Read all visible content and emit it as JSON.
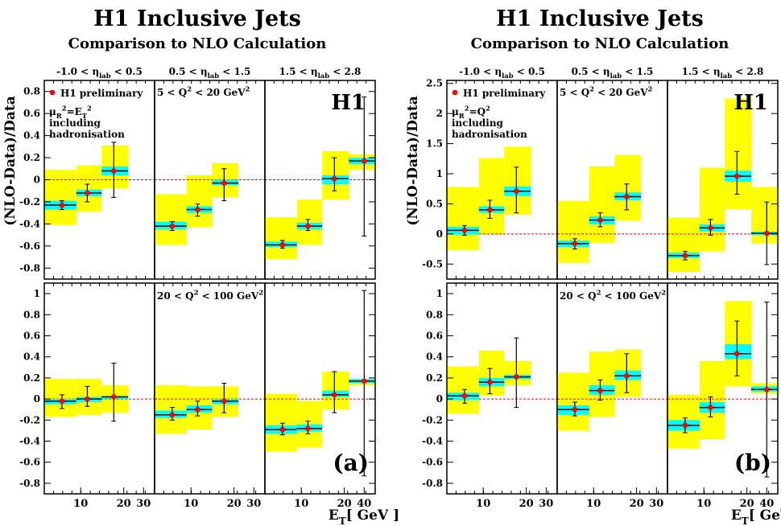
{
  "figure": {
    "title": "H1 Inclusive Jets",
    "subtitle": "Comparison to NLO Calculation",
    "ylabel": "(NLO-Data)/Data",
    "xlabel": "E",
    "xlabel_sub": "T",
    "xlabel_unit": "[ GeV ]",
    "eta_bins": [
      {
        "pre": "-1.0 < η",
        "sub": "lab",
        "post": " < 0.5"
      },
      {
        "pre": "0.5 < η",
        "sub": "lab",
        "post": " < 1.5"
      },
      {
        "pre": "1.5 < η",
        "sub": "lab",
        "post": " < 2.8"
      }
    ],
    "q2_bins": [
      {
        "pre": "5 < Q",
        "sup": "2",
        "post": " < 20 GeV",
        "sup2": "2"
      },
      {
        "pre": "20 < Q",
        "sup": "2",
        "post": " < 100 GeV",
        "sup2": "2"
      }
    ],
    "legend_marker_label": "H1 preliminary",
    "legend_line2": "including",
    "legend_line3": "hadronisation",
    "h1_logo": "H1",
    "colors": {
      "uncertainty": "#ffff00",
      "band": "#00ffff",
      "marker": "#ff0000",
      "zero_line": "#ff0000"
    }
  },
  "chart_data": [
    {
      "type": "scatter",
      "panel_label": "(a)",
      "scale_label": {
        "mu": "μ",
        "mu_sub": "R",
        "mu_sup": "2",
        "eq": "=E",
        "rhs_sub": "T",
        "rhs_sup": "2"
      },
      "ylim_top": [
        -0.9,
        0.9
      ],
      "ylim_bottom": [
        -0.9,
        1.1
      ],
      "yticks_top": [
        "-0.8",
        "-0.6",
        "-0.4",
        "-0.2",
        "0",
        "0.2",
        "0.4",
        "0.6",
        "0.8"
      ],
      "yticks_bottom": [
        "-0.8",
        "-0.6",
        "-0.4",
        "-0.2",
        "0",
        "0.2",
        "0.4",
        "0.6",
        "0.8",
        "1"
      ],
      "xtick_labels": [
        [
          "10",
          "20",
          "30"
        ],
        [
          "10",
          "20",
          "30"
        ],
        [
          "10",
          "20",
          "40"
        ]
      ],
      "rows": [
        [
          {
            "points": [
              {
                "x": 0.5,
                "y": -0.23,
                "ylo": -0.27,
                "yhi": -0.19,
                "bandlo": -0.27,
                "bandhi": -0.19,
                "unclo": -0.41,
                "unchi": 0.09
              },
              {
                "x": 1.5,
                "y": -0.12,
                "ylo": -0.2,
                "yhi": -0.04,
                "bandlo": -0.15,
                "bandhi": -0.09,
                "unclo": -0.29,
                "unchi": 0.13
              },
              {
                "x": 2.5,
                "y": 0.08,
                "ylo": -0.16,
                "yhi": 0.34,
                "bandlo": 0.04,
                "bandhi": 0.12,
                "unclo": -0.08,
                "unchi": 0.31
              }
            ]
          },
          {
            "points": [
              {
                "x": 0.5,
                "y": -0.42,
                "ylo": -0.46,
                "yhi": -0.38,
                "bandlo": -0.45,
                "bandhi": -0.38,
                "unclo": -0.59,
                "unchi": -0.13
              },
              {
                "x": 1.5,
                "y": -0.27,
                "ylo": -0.33,
                "yhi": -0.22,
                "bandlo": -0.3,
                "bandhi": -0.24,
                "unclo": -0.43,
                "unchi": 0.04
              },
              {
                "x": 2.5,
                "y": -0.03,
                "ylo": -0.19,
                "yhi": 0.1,
                "bandlo": -0.05,
                "bandhi": 0.0,
                "unclo": -0.16,
                "unchi": 0.15
              }
            ]
          },
          {
            "points": [
              {
                "x": 0.5,
                "y": -0.59,
                "ylo": -0.62,
                "yhi": -0.55,
                "bandlo": -0.61,
                "bandhi": -0.56,
                "unclo": -0.72,
                "unchi": -0.34
              },
              {
                "x": 1.5,
                "y": -0.42,
                "ylo": -0.46,
                "yhi": -0.36,
                "bandlo": -0.45,
                "bandhi": -0.39,
                "unclo": -0.59,
                "unchi": -0.18
              },
              {
                "x": 2.5,
                "y": 0.01,
                "ylo": -0.1,
                "yhi": 0.2,
                "bandlo": -0.04,
                "bandhi": 0.04,
                "unclo": -0.18,
                "unchi": 0.26
              },
              {
                "x": 3.5,
                "y": 0.17,
                "ylo": -0.51,
                "yhi": 0.75,
                "bandlo": 0.14,
                "bandhi": 0.2,
                "unclo": 0.09,
                "unchi": 0.23
              }
            ]
          }
        ],
        [
          {
            "points": [
              {
                "x": 0.5,
                "y": -0.02,
                "ylo": -0.09,
                "yhi": 0.04,
                "bandlo": -0.05,
                "bandhi": 0.0,
                "unclo": -0.17,
                "unchi": 0.19
              },
              {
                "x": 1.5,
                "y": 0.0,
                "ylo": -0.07,
                "yhi": 0.12,
                "bandlo": -0.03,
                "bandhi": 0.02,
                "unclo": -0.15,
                "unchi": 0.19
              },
              {
                "x": 2.5,
                "y": 0.02,
                "ylo": -0.21,
                "yhi": 0.34,
                "bandlo": 0.0,
                "bandhi": 0.03,
                "unclo": -0.13,
                "unchi": 0.13
              }
            ]
          },
          {
            "points": [
              {
                "x": 0.5,
                "y": -0.15,
                "ylo": -0.2,
                "yhi": -0.08,
                "bandlo": -0.18,
                "bandhi": -0.11,
                "unclo": -0.33,
                "unchi": 0.13
              },
              {
                "x": 1.5,
                "y": -0.1,
                "ylo": -0.16,
                "yhi": -0.02,
                "bandlo": -0.13,
                "bandhi": -0.06,
                "unclo": -0.29,
                "unchi": 0.12
              },
              {
                "x": 2.5,
                "y": -0.02,
                "ylo": -0.13,
                "yhi": 0.15,
                "bandlo": -0.05,
                "bandhi": 0.0,
                "unclo": -0.17,
                "unchi": 0.12
              }
            ]
          },
          {
            "points": [
              {
                "x": 0.5,
                "y": -0.29,
                "ylo": -0.34,
                "yhi": -0.23,
                "bandlo": -0.33,
                "bandhi": -0.25,
                "unclo": -0.5,
                "unchi": 0.05
              },
              {
                "x": 1.5,
                "y": -0.28,
                "ylo": -0.33,
                "yhi": -0.21,
                "bandlo": -0.31,
                "bandhi": -0.24,
                "unclo": -0.46,
                "unchi": -0.02
              },
              {
                "x": 2.5,
                "y": 0.04,
                "ylo": -0.13,
                "yhi": 0.26,
                "bandlo": 0.02,
                "bandhi": 0.08,
                "unclo": -0.1,
                "unchi": 0.26
              },
              {
                "x": 3.5,
                "y": 0.17,
                "ylo": -0.73,
                "yhi": 1.03,
                "bandlo": 0.15,
                "bandhi": 0.19,
                "unclo": 0.13,
                "unchi": 0.19
              }
            ]
          }
        ]
      ]
    },
    {
      "type": "scatter",
      "panel_label": "(b)",
      "scale_label": {
        "mu": "μ",
        "mu_sub": "R",
        "mu_sup": "2",
        "eq": "=Q",
        "rhs_sub": "",
        "rhs_sup": "2"
      },
      "ylim_top": [
        -0.75,
        2.55
      ],
      "ylim_bottom": [
        -0.9,
        1.1
      ],
      "yticks_top": [
        "-0.5",
        "0",
        "0.5",
        "1",
        "1.5",
        "2",
        "2.5"
      ],
      "yticks_bottom": [
        "-0.8",
        "-0.6",
        "-0.4",
        "-0.2",
        "0",
        "0.2",
        "0.4",
        "0.6",
        "0.8",
        "1"
      ],
      "xtick_labels": [
        [
          "10",
          "20",
          "30"
        ],
        [
          "10",
          "20",
          "30"
        ],
        [
          "10",
          "20",
          "40"
        ]
      ],
      "rows": [
        [
          {
            "points": [
              {
                "x": 0.5,
                "y": 0.06,
                "ylo": -0.02,
                "yhi": 0.14,
                "bandlo": -0.01,
                "bandhi": 0.12,
                "unclo": -0.27,
                "unchi": 0.78
              },
              {
                "x": 1.5,
                "y": 0.4,
                "ylo": 0.26,
                "yhi": 0.56,
                "bandlo": 0.35,
                "bandhi": 0.46,
                "unclo": -0.01,
                "unchi": 1.26
              },
              {
                "x": 2.5,
                "y": 0.71,
                "ylo": 0.35,
                "yhi": 1.11,
                "bandlo": 0.63,
                "bandhi": 0.79,
                "unclo": 0.32,
                "unchi": 1.45
              }
            ]
          },
          {
            "points": [
              {
                "x": 0.5,
                "y": -0.16,
                "ylo": -0.25,
                "yhi": -0.08,
                "bandlo": -0.22,
                "bandhi": -0.11,
                "unclo": -0.48,
                "unchi": 0.55
              },
              {
                "x": 1.5,
                "y": 0.23,
                "ylo": 0.12,
                "yhi": 0.35,
                "bandlo": 0.16,
                "bandhi": 0.29,
                "unclo": -0.15,
                "unchi": 1.12
              },
              {
                "x": 2.5,
                "y": 0.62,
                "ylo": 0.4,
                "yhi": 0.83,
                "bandlo": 0.56,
                "bandhi": 0.69,
                "unclo": 0.22,
                "unchi": 1.31
              }
            ]
          },
          {
            "points": [
              {
                "x": 0.5,
                "y": -0.36,
                "ylo": -0.43,
                "yhi": -0.29,
                "bandlo": -0.4,
                "bandhi": -0.31,
                "unclo": -0.63,
                "unchi": 0.27
              },
              {
                "x": 1.5,
                "y": 0.1,
                "ylo": -0.02,
                "yhi": 0.24,
                "bandlo": 0.04,
                "bandhi": 0.16,
                "unclo": -0.29,
                "unchi": 1.1
              },
              {
                "x": 2.5,
                "y": 0.96,
                "ylo": 0.66,
                "yhi": 1.37,
                "bandlo": 0.87,
                "bandhi": 1.05,
                "unclo": 0.41,
                "unchi": 2.25
              },
              {
                "x": 3.5,
                "y": 0.01,
                "ylo": -0.51,
                "yhi": 0.53,
                "bandlo": -0.02,
                "bandhi": 0.04,
                "unclo": -0.16,
                "unchi": 0.78
              }
            ]
          }
        ],
        [
          {
            "points": [
              {
                "x": 0.5,
                "y": 0.03,
                "ylo": -0.04,
                "yhi": 0.09,
                "bandlo": -0.01,
                "bandhi": 0.06,
                "unclo": -0.14,
                "unchi": 0.31
              },
              {
                "x": 1.5,
                "y": 0.16,
                "ylo": 0.05,
                "yhi": 0.29,
                "bandlo": 0.12,
                "bandhi": 0.2,
                "unclo": 0.03,
                "unchi": 0.46
              },
              {
                "x": 2.5,
                "y": 0.21,
                "ylo": -0.08,
                "yhi": 0.58,
                "bandlo": 0.19,
                "bandhi": 0.23,
                "unclo": 0.13,
                "unchi": 0.36
              }
            ]
          },
          {
            "points": [
              {
                "x": 0.5,
                "y": -0.1,
                "ylo": -0.16,
                "yhi": -0.03,
                "bandlo": -0.15,
                "bandhi": -0.06,
                "unclo": -0.3,
                "unchi": 0.25
              },
              {
                "x": 1.5,
                "y": 0.08,
                "ylo": -0.01,
                "yhi": 0.18,
                "bandlo": 0.04,
                "bandhi": 0.13,
                "unclo": -0.17,
                "unchi": 0.45
              },
              {
                "x": 2.5,
                "y": 0.22,
                "ylo": 0.06,
                "yhi": 0.43,
                "bandlo": 0.18,
                "bandhi": 0.27,
                "unclo": 0.02,
                "unchi": 0.47
              }
            ]
          },
          {
            "points": [
              {
                "x": 0.5,
                "y": -0.25,
                "ylo": -0.32,
                "yhi": -0.18,
                "bandlo": -0.3,
                "bandhi": -0.2,
                "unclo": -0.47,
                "unchi": 0.04
              },
              {
                "x": 1.5,
                "y": -0.08,
                "ylo": -0.17,
                "yhi": 0.02,
                "bandlo": -0.13,
                "bandhi": -0.03,
                "unclo": -0.38,
                "unchi": 0.36
              },
              {
                "x": 2.5,
                "y": 0.43,
                "ylo": 0.22,
                "yhi": 0.74,
                "bandlo": 0.38,
                "bandhi": 0.52,
                "unclo": 0.12,
                "unchi": 0.93
              },
              {
                "x": 3.5,
                "y": 0.09,
                "ylo": -0.74,
                "yhi": 0.92,
                "bandlo": 0.07,
                "bandhi": 0.12,
                "unclo": 0.05,
                "unchi": 0.15
              }
            ]
          }
        ]
      ]
    }
  ]
}
